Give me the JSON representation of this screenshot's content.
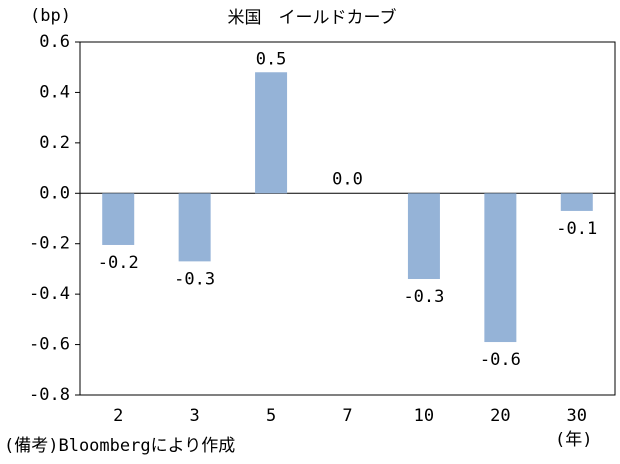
{
  "chart_data": {
    "type": "bar",
    "title": "米国　イールドカーブ",
    "y_unit": "(bp)",
    "x_unit": "(年)",
    "note": "(備考)Bloombergにより作成",
    "categories": [
      "2",
      "3",
      "5",
      "7",
      "10",
      "20",
      "30"
    ],
    "values": [
      -0.205,
      -0.27,
      0.48,
      0.0,
      -0.34,
      -0.59,
      -0.07
    ],
    "value_labels": [
      "-0.2",
      "-0.3",
      "0.5",
      "0.0",
      "-0.3",
      "-0.6",
      "-0.1"
    ],
    "color": "#95b3d7",
    "ylim": [
      -0.8,
      0.6
    ],
    "yticks": [
      0.6,
      0.4,
      0.2,
      {
        "value": 0,
        "label": "0.0"
      },
      -0.2,
      -0.4,
      -0.6,
      -0.8
    ],
    "grid": false
  }
}
